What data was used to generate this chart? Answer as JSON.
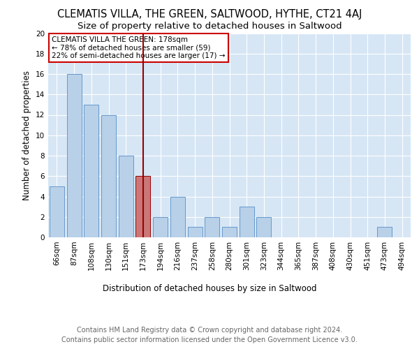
{
  "title": "CLEMATIS VILLA, THE GREEN, SALTWOOD, HYTHE, CT21 4AJ",
  "subtitle": "Size of property relative to detached houses in Saltwood",
  "xlabel": "Distribution of detached houses by size in Saltwood",
  "ylabel": "Number of detached properties",
  "categories": [
    "66sqm",
    "87sqm",
    "108sqm",
    "130sqm",
    "151sqm",
    "173sqm",
    "194sqm",
    "216sqm",
    "237sqm",
    "258sqm",
    "280sqm",
    "301sqm",
    "323sqm",
    "344sqm",
    "365sqm",
    "387sqm",
    "408sqm",
    "430sqm",
    "451sqm",
    "473sqm",
    "494sqm"
  ],
  "values": [
    5,
    16,
    13,
    12,
    8,
    6,
    2,
    4,
    1,
    2,
    1,
    3,
    2,
    0,
    0,
    0,
    0,
    0,
    0,
    1,
    0
  ],
  "bar_color": "#b8d0e8",
  "bar_edge_color": "#6699cc",
  "highlight_bar_index": 5,
  "highlight_bar_color": "#cc7777",
  "highlight_bar_edge_color": "#990000",
  "vline_color": "#990000",
  "annotation_text": "CLEMATIS VILLA THE GREEN: 178sqm\n← 78% of detached houses are smaller (59)\n22% of semi-detached houses are larger (17) →",
  "annotation_box_facecolor": "#ffffff",
  "annotation_box_edgecolor": "#cc0000",
  "ylim": [
    0,
    20
  ],
  "yticks": [
    0,
    2,
    4,
    6,
    8,
    10,
    12,
    14,
    16,
    18,
    20
  ],
  "footer_text": "Contains HM Land Registry data © Crown copyright and database right 2024.\nContains public sector information licensed under the Open Government Licence v3.0.",
  "plot_bg_color": "#d6e6f5",
  "grid_color": "#ffffff",
  "title_fontsize": 10.5,
  "subtitle_fontsize": 9.5,
  "axis_label_fontsize": 8.5,
  "tick_fontsize": 7.5,
  "annotation_fontsize": 7.5,
  "footer_fontsize": 7
}
